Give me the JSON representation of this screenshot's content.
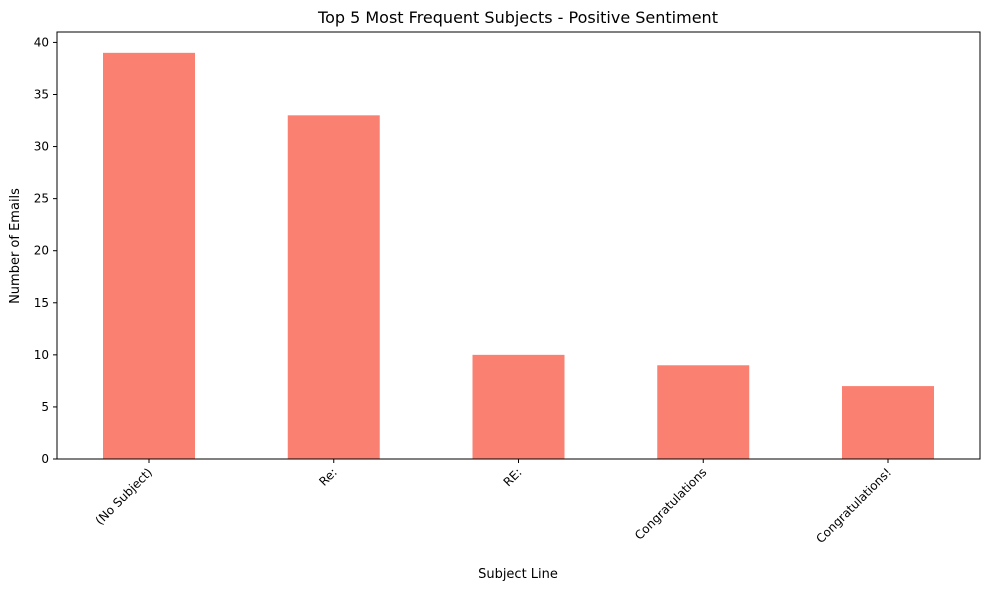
{
  "chart_data": {
    "type": "bar",
    "title": "Top 5 Most Frequent Subjects - Positive Sentiment",
    "xlabel": "Subject Line",
    "ylabel": "Number of Emails",
    "categories": [
      "(No Subject)",
      "Re:",
      "RE:",
      "Congratulations",
      "Congratulations!"
    ],
    "values": [
      39,
      33,
      10,
      9,
      7
    ],
    "ylim": [
      0,
      41
    ],
    "yticks": [
      0,
      5,
      10,
      15,
      20,
      25,
      30,
      35,
      40
    ],
    "grid": false,
    "bar_color": "#fa8072",
    "xtick_rotation": "45-degree, right-aligned"
  }
}
